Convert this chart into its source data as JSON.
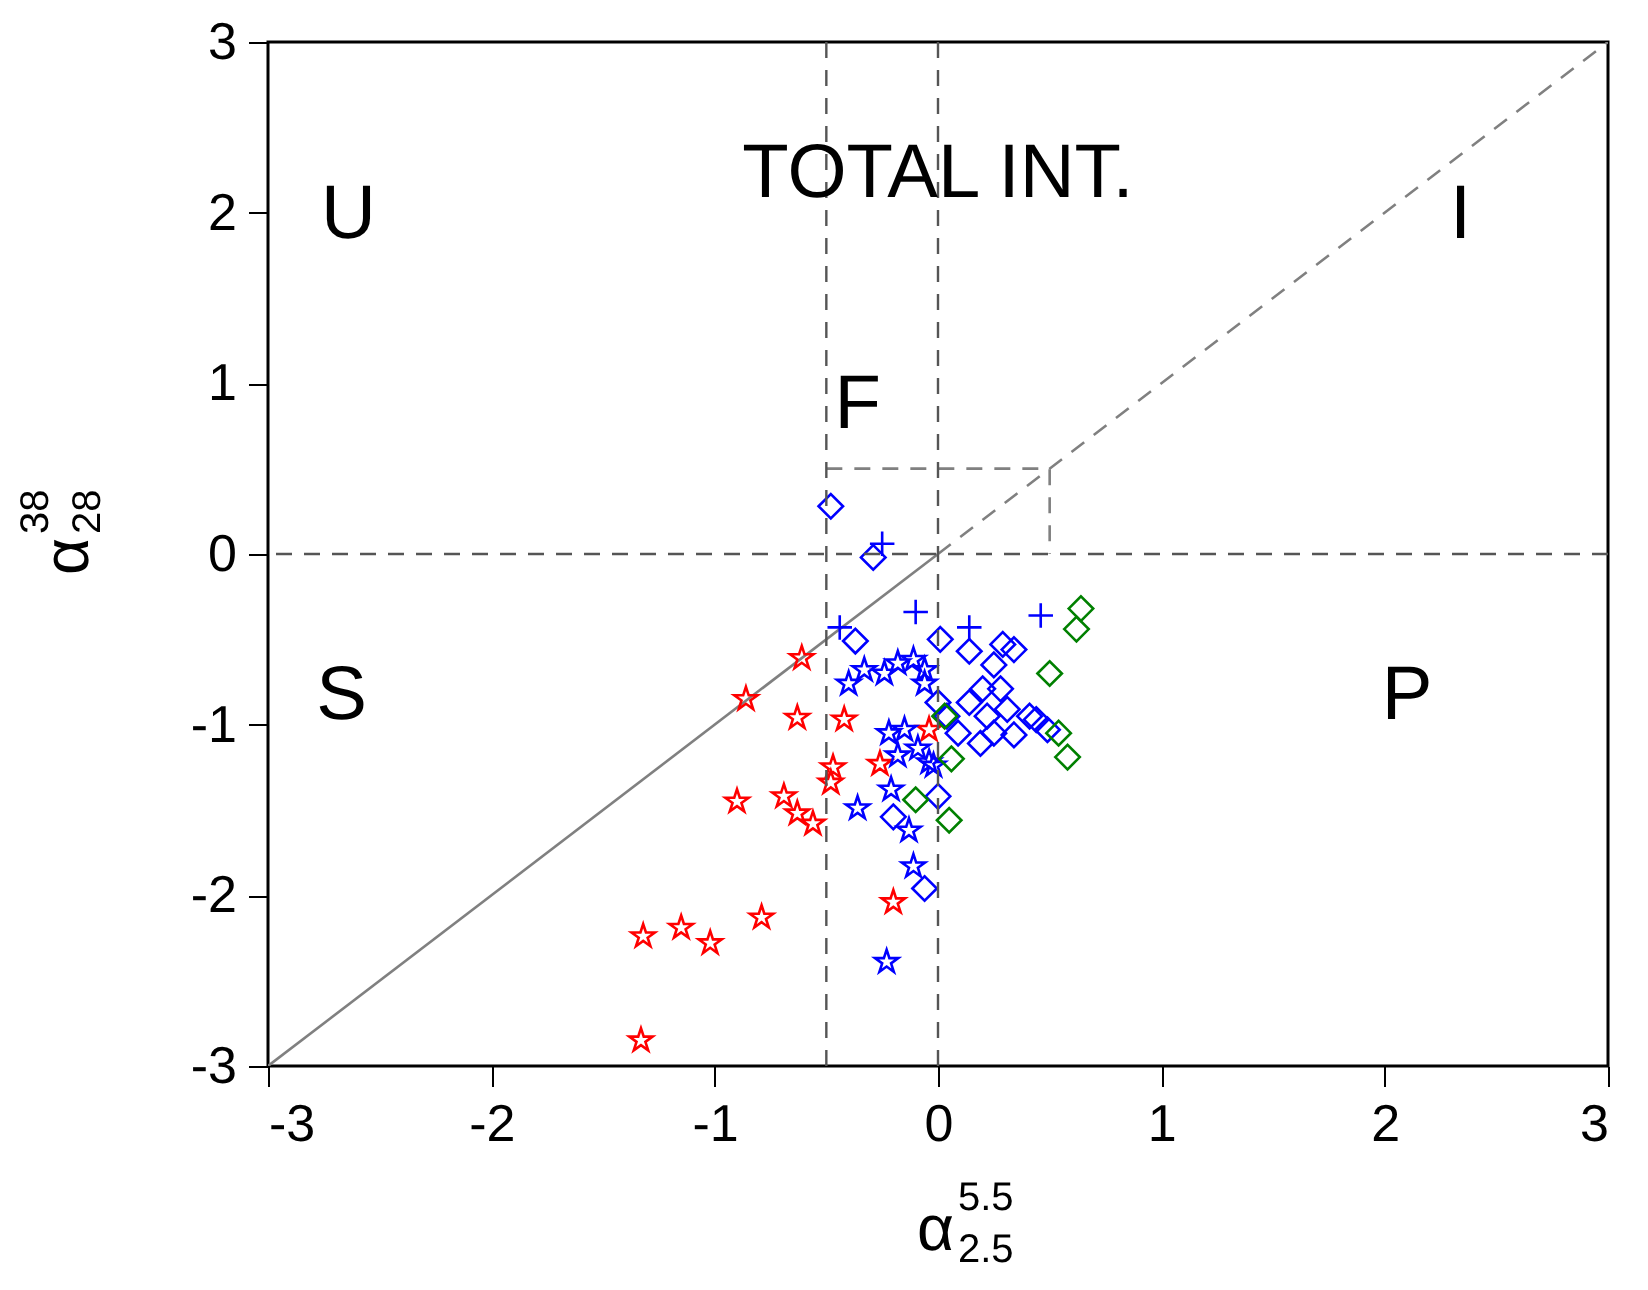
{
  "chart_data": {
    "type": "scatter",
    "xlabel": "α$^{5.5}$$_{2.5}$",
    "ylabel": "α$^{38}$$_{28}$",
    "xlim": [
      -3,
      3
    ],
    "ylim": [
      -3,
      3
    ],
    "xticks": [
      -3,
      -2,
      -1,
      0,
      1,
      2,
      3
    ],
    "yticks": [
      -3,
      -2,
      -1,
      0,
      1,
      2,
      3
    ],
    "grid": false,
    "annotations": [
      "TOTAL INT.",
      "U",
      "I",
      "F",
      "S",
      "P"
    ],
    "ref_lines": [
      {
        "axis": "x",
        "value": -0.5,
        "color": "#555555",
        "line_style": "dashed"
      },
      {
        "axis": "x",
        "value": 0,
        "color": "#555555",
        "line_style": "dashed"
      },
      {
        "axis": "y",
        "value": 0,
        "color": "#555555",
        "line_style": "dashed"
      }
    ],
    "series": [
      {
        "type": "line",
        "color": "#808080",
        "line_style": "solid",
        "marker": "none",
        "x": [
          -3,
          0
        ],
        "values": [
          -3,
          0
        ]
      },
      {
        "type": "line",
        "color": "#808080",
        "line_style": "dashed",
        "marker": "none",
        "x": [
          0,
          3
        ],
        "values": [
          0,
          3
        ]
      },
      {
        "type": "line",
        "color": "#808080",
        "line_style": "dashed",
        "marker": "none",
        "x": [
          -0.5,
          0.5,
          0.5
        ],
        "values": [
          0.5,
          0.5,
          0
        ]
      },
      {
        "color": "#ff0000",
        "marker": "star",
        "x": [
          -0.61,
          -0.86,
          -0.63,
          -0.42,
          -0.04,
          -0.26,
          -0.47,
          -0.9,
          -0.69,
          -0.63,
          -0.56,
          -0.48,
          -0.2,
          -0.79,
          -1.15,
          -1.32,
          -1.02,
          -1.33
        ],
        "values": [
          -0.61,
          -0.85,
          -0.96,
          -0.97,
          -1.03,
          -1.23,
          -1.25,
          -1.45,
          -1.42,
          -1.52,
          -1.58,
          -1.34,
          -2.04,
          -2.13,
          -2.19,
          -2.24,
          -2.28,
          -2.85
        ]
      },
      {
        "color": "#0000ff",
        "marker": "star",
        "x": [
          -0.23,
          -0.11,
          -0.36,
          -0.13,
          -0.21,
          -0.04,
          -0.4,
          -0.33,
          -0.24,
          -0.18,
          -0.11,
          -0.06,
          -0.06,
          -0.22,
          -0.15,
          -0.09,
          -0.18,
          -0.02
        ],
        "values": [
          -2.39,
          -1.83,
          -1.49,
          -1.62,
          -1.38,
          -1.22,
          -0.76,
          -0.68,
          -0.7,
          -0.64,
          -0.62,
          -0.68,
          -0.76,
          -1.05,
          -1.03,
          -1.14,
          -1.18,
          -1.24
        ]
      },
      {
        "color": "#0000ff",
        "marker": "cross",
        "x": [
          -0.25,
          -0.1,
          0.14,
          0.46,
          -0.44
        ],
        "values": [
          0.06,
          -0.34,
          -0.43,
          -0.36,
          -0.43
        ]
      },
      {
        "color": "#0000ff",
        "marker": "diamond",
        "x": [
          -0.48,
          -0.29,
          -0.37,
          0.01,
          0.14,
          0.29,
          0.34,
          0.25,
          0.0,
          0.04,
          0.14,
          0.2,
          0.28,
          0.22,
          0.31,
          0.09,
          0.19,
          0.34,
          0.41,
          0.44,
          0.49,
          0.25,
          -0.2,
          0.0,
          -0.06
        ],
        "values": [
          0.28,
          -0.02,
          -0.51,
          -0.5,
          -0.57,
          -0.53,
          -0.56,
          -0.65,
          -0.87,
          -0.95,
          -0.87,
          -0.79,
          -0.79,
          -0.95,
          -0.91,
          -1.05,
          -1.11,
          -1.06,
          -0.95,
          -0.97,
          -1.03,
          -1.05,
          -1.54,
          -1.42,
          -1.96
        ]
      },
      {
        "color": "#008000",
        "marker": "diamond",
        "x": [
          0.64,
          0.62,
          0.5,
          0.03,
          0.54,
          0.58,
          0.06,
          -0.1,
          0.05
        ],
        "values": [
          -0.32,
          -0.44,
          -0.7,
          -0.95,
          -1.05,
          -1.19,
          -1.2,
          -1.44,
          -1.56
        ]
      }
    ]
  }
}
